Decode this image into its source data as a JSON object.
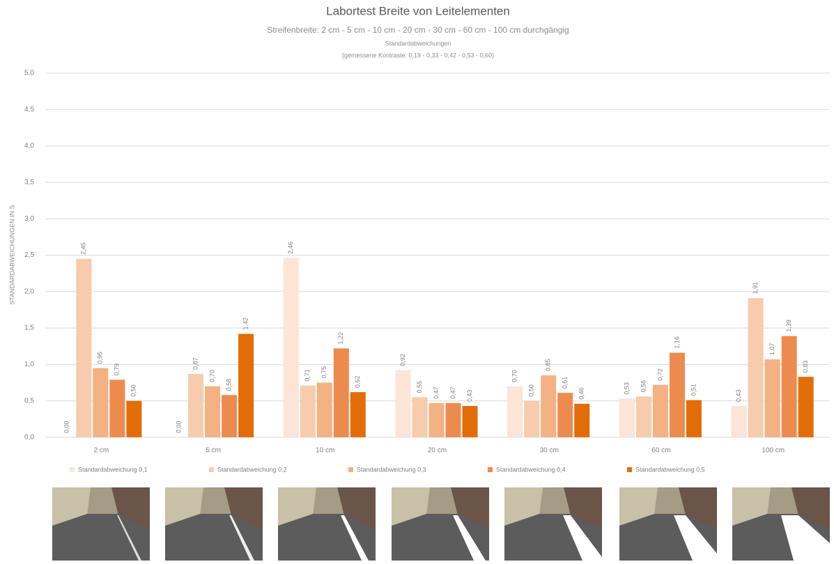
{
  "chart_data": {
    "type": "bar",
    "title": "Labortest Breite von Leitelementen",
    "subtitle": "Streifenbreite: 2 cm - 5 cm - 10 cm - 20 cm - 30 cm - 60 cm - 100 cm durchgängig",
    "annotations": [
      "Standardabweichungen",
      "(gemessene Kontraste: 0,19 - 0,33 - 0,42 - 0,53 - 0,60)"
    ],
    "y_label": "STANDARDABWEICHUNGEN IN S",
    "categories": [
      "2 cm",
      "5 cm",
      "10 cm",
      "20 cm",
      "30 cm",
      "60 cm",
      "100 cm"
    ],
    "ylim": [
      0,
      5
    ],
    "yticks": [
      {
        "value": 0,
        "label": "0,0"
      },
      {
        "value": 0.5,
        "label": "0,5"
      },
      {
        "value": 1,
        "label": "1,0"
      },
      {
        "value": 1.5,
        "label": "1,5"
      },
      {
        "value": 2,
        "label": "2,0"
      },
      {
        "value": 2.5,
        "label": "2,5"
      },
      {
        "value": 3,
        "label": "3,0"
      },
      {
        "value": 3.5,
        "label": "3,5"
      },
      {
        "value": 4,
        "label": "4,0"
      },
      {
        "value": 4.5,
        "label": "4,5"
      },
      {
        "value": 5,
        "label": "5,0"
      }
    ],
    "grid": true,
    "legend": "bottom",
    "series": [
      {
        "name": "Standardabweichung 0,1",
        "color": "#fce4d6",
        "values": [
          0,
          0,
          2.46,
          0.92,
          0.7,
          0.53,
          0.43
        ],
        "value_labels": [
          "0,00",
          "0,00",
          "2,46",
          "0,92",
          "0,70",
          "0,53",
          "0,43"
        ]
      },
      {
        "name": "Standardabweichung 0,2",
        "color": "#f8cbad",
        "values": [
          2.45,
          0.87,
          0.71,
          0.55,
          0.5,
          0.56,
          1.91
        ],
        "value_labels": [
          "2,45",
          "0,87",
          "0,71",
          "0,55",
          "0,50",
          "0,56",
          "1,91"
        ]
      },
      {
        "name": "Standardabweichung 0,3",
        "color": "#f4b183",
        "values": [
          0.95,
          0.7,
          0.75,
          0.47,
          0.85,
          0.72,
          1.07
        ],
        "value_labels": [
          "0,95",
          "0,70",
          "0,75",
          "0,47",
          "0,85",
          "0,72",
          "1,07"
        ]
      },
      {
        "name": "Standardabweichung 0,4",
        "color": "#ed8b4e",
        "values": [
          0.79,
          0.58,
          1.22,
          0.47,
          0.61,
          1.16,
          1.39
        ],
        "value_labels": [
          "0,79",
          "0,58",
          "1,22",
          "0,47",
          "0,61",
          "1,16",
          "1,39"
        ]
      },
      {
        "name": "Standardabweichung 0,5",
        "color": "#e46c0a",
        "values": [
          0.5,
          1.42,
          0.62,
          0.43,
          0.46,
          0.51,
          0.83
        ],
        "value_labels": [
          "0,50",
          "1,42",
          "0,62",
          "0,43",
          "0,46",
          "0,51",
          "0,83"
        ]
      }
    ]
  }
}
